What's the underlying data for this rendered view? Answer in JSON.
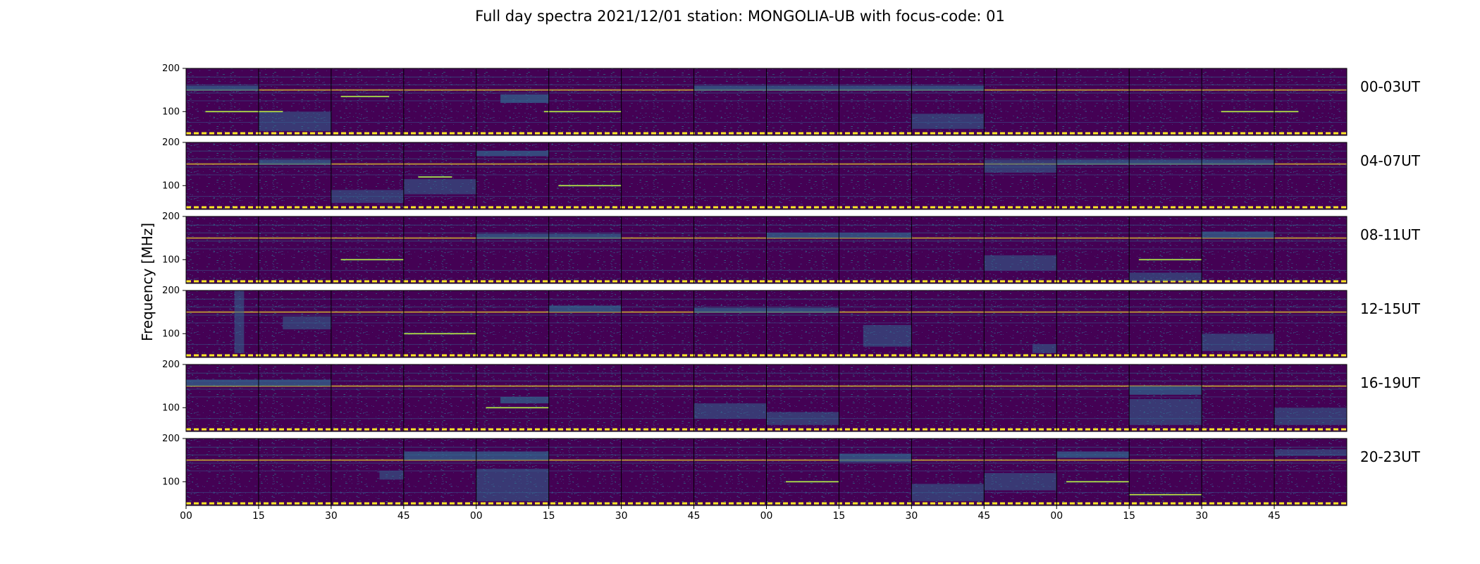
{
  "chart_data": {
    "type": "heatmap",
    "title": "Full day spectra 2021/12/01 station: MONGOLIA-UB with focus-code: 01",
    "ylabel": "Frequency [MHz]",
    "xlabel": "",
    "ylim": [
      45,
      200
    ],
    "y_ticks": [
      "100",
      "200"
    ],
    "x_ticks": [
      "00",
      "15",
      "30",
      "45",
      "00",
      "15",
      "30",
      "45",
      "00",
      "15",
      "30",
      "45",
      "00",
      "15",
      "30",
      "45"
    ],
    "x_tick_positions_minutes": [
      0,
      15,
      30,
      45,
      60,
      75,
      90,
      105,
      120,
      135,
      150,
      165,
      180,
      195,
      210,
      225
    ],
    "x_range_minutes": [
      0,
      240
    ],
    "segment_length_minutes": 15,
    "colormap": "viridis",
    "colors": {
      "background": "#440154",
      "mid": "#31688e",
      "teal": "#35b779",
      "bright": "#fde725",
      "border": "#000000"
    },
    "rows": [
      {
        "label": "00-03UT",
        "tones": [
          [
            4,
            20,
            100
          ],
          [
            74,
            90,
            100
          ],
          [
            214,
            230,
            100
          ],
          [
            32,
            42,
            135
          ]
        ],
        "bands": [
          [
            0,
            15,
            148,
            160
          ],
          [
            105,
            165,
            148,
            160
          ],
          [
            65,
            75,
            120,
            140
          ]
        ],
        "bursts": [
          [
            15,
            30,
            55,
            100
          ],
          [
            150,
            165,
            60,
            95
          ]
        ]
      },
      {
        "label": "04-07UT",
        "tones": [
          [
            77,
            90,
            100
          ],
          [
            48,
            55,
            120
          ]
        ],
        "bands": [
          [
            15,
            30,
            148,
            160
          ],
          [
            180,
            225,
            148,
            160
          ],
          [
            60,
            75,
            168,
            180
          ]
        ],
        "bursts": [
          [
            45,
            60,
            80,
            115
          ],
          [
            30,
            45,
            60,
            90
          ],
          [
            165,
            180,
            130,
            160
          ]
        ]
      },
      {
        "label": "08-11UT",
        "tones": [
          [
            32,
            45,
            100
          ],
          [
            197,
            210,
            100
          ]
        ],
        "bands": [
          [
            60,
            90,
            148,
            160
          ],
          [
            120,
            150,
            150,
            162
          ],
          [
            210,
            225,
            150,
            165
          ]
        ],
        "bursts": [
          [
            165,
            180,
            75,
            110
          ],
          [
            195,
            210,
            50,
            70
          ]
        ]
      },
      {
        "label": "12-15UT",
        "tones": [
          [
            45,
            60,
            100
          ]
        ],
        "bands": [
          [
            105,
            135,
            148,
            160
          ],
          [
            75,
            90,
            150,
            165
          ]
        ],
        "bursts": [
          [
            10,
            12,
            55,
            200
          ],
          [
            140,
            150,
            70,
            120
          ],
          [
            20,
            30,
            110,
            140
          ],
          [
            175,
            180,
            55,
            75
          ],
          [
            210,
            225,
            60,
            100
          ]
        ]
      },
      {
        "label": "16-19UT",
        "tones": [
          [
            62,
            75,
            100
          ]
        ],
        "bands": [
          [
            0,
            30,
            150,
            165
          ],
          [
            65,
            75,
            110,
            125
          ],
          [
            195,
            210,
            130,
            150
          ]
        ],
        "bursts": [
          [
            195,
            210,
            60,
            120
          ],
          [
            120,
            135,
            60,
            90
          ],
          [
            105,
            120,
            75,
            110
          ],
          [
            225,
            240,
            60,
            100
          ]
        ]
      },
      {
        "label": "20-23UT",
        "tones": [
          [
            124,
            135,
            100
          ],
          [
            182,
            195,
            100
          ],
          [
            195,
            210,
            70
          ]
        ],
        "bands": [
          [
            45,
            75,
            150,
            170
          ],
          [
            135,
            150,
            145,
            165
          ],
          [
            180,
            195,
            155,
            170
          ]
        ],
        "bursts": [
          [
            60,
            75,
            55,
            130
          ],
          [
            165,
            180,
            80,
            120
          ],
          [
            40,
            45,
            105,
            125
          ],
          [
            150,
            165,
            55,
            95
          ],
          [
            225,
            240,
            160,
            175
          ]
        ]
      }
    ]
  }
}
